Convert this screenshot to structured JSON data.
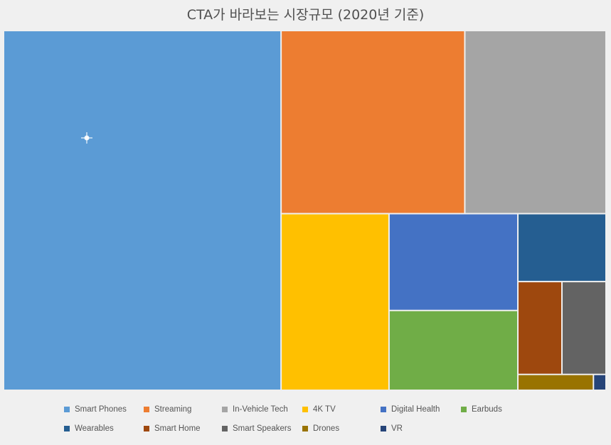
{
  "chart_data": {
    "type": "treemap",
    "title": "CTA가 바라보는 시장규모 (2020년 기준)",
    "series": [
      {
        "name": "Smart Phones",
        "value": 100,
        "color": "#5b9bd5"
      },
      {
        "name": "Streaming",
        "value": 33.7,
        "color": "#ed7d31"
      },
      {
        "name": "In-Vehicle Tech",
        "value": 25.9,
        "color": "#a5a5a5"
      },
      {
        "name": "4K TV",
        "value": 19.1,
        "color": "#ffc000"
      },
      {
        "name": "Digital Health",
        "value": 12.5,
        "color": "#4472c4"
      },
      {
        "name": "Earbuds",
        "value": 10.3,
        "color": "#70ad47"
      },
      {
        "name": "Wearables",
        "value": 6.0,
        "color": "#255e91"
      },
      {
        "name": "Smart Home",
        "value": 4.1,
        "color": "#9e480e"
      },
      {
        "name": "Smart Speakers",
        "value": 4.1,
        "color": "#636363"
      },
      {
        "name": "Drones",
        "value": 1.2,
        "color": "#997300"
      },
      {
        "name": "VR",
        "value": 0.2,
        "color": "#264478"
      }
    ],
    "legend_position": "bottom"
  }
}
